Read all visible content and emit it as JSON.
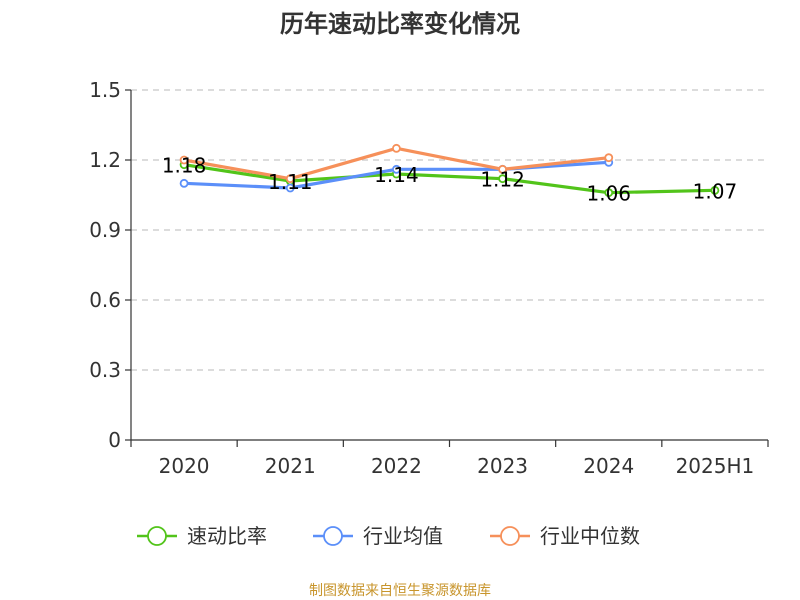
{
  "chart_data": {
    "type": "line",
    "title": "历年速动比率变化情况",
    "categories": [
      "2020",
      "2021",
      "2022",
      "2023",
      "2024",
      "2025H1"
    ],
    "ylim": [
      0,
      1.5
    ],
    "yticks": [
      "0",
      "0.3",
      "0.6",
      "0.9",
      "1.2",
      "1.5"
    ],
    "ytick_values": [
      0,
      0.3,
      0.6,
      0.9,
      1.2,
      1.5
    ],
    "grid": true,
    "legend_position": "bottom",
    "series": [
      {
        "name": "速动比率",
        "color": "#52c41a",
        "values": [
          1.18,
          1.11,
          1.14,
          1.12,
          1.06,
          1.07
        ],
        "labels": [
          "1.18",
          "1.11",
          "1.14",
          "1.12",
          "1.06",
          "1.07"
        ],
        "show_labels": true
      },
      {
        "name": "行业均值",
        "color": "#5b8ff9",
        "values": [
          1.1,
          1.08,
          1.16,
          1.16,
          1.19,
          null
        ],
        "show_labels": false
      },
      {
        "name": "行业中位数",
        "color": "#f6905a",
        "values": [
          1.2,
          1.12,
          1.25,
          1.16,
          1.21,
          null
        ],
        "show_labels": false
      }
    ]
  },
  "source": {
    "text": "制图数据来自恒生聚源数据库",
    "color": "#c8952c"
  }
}
